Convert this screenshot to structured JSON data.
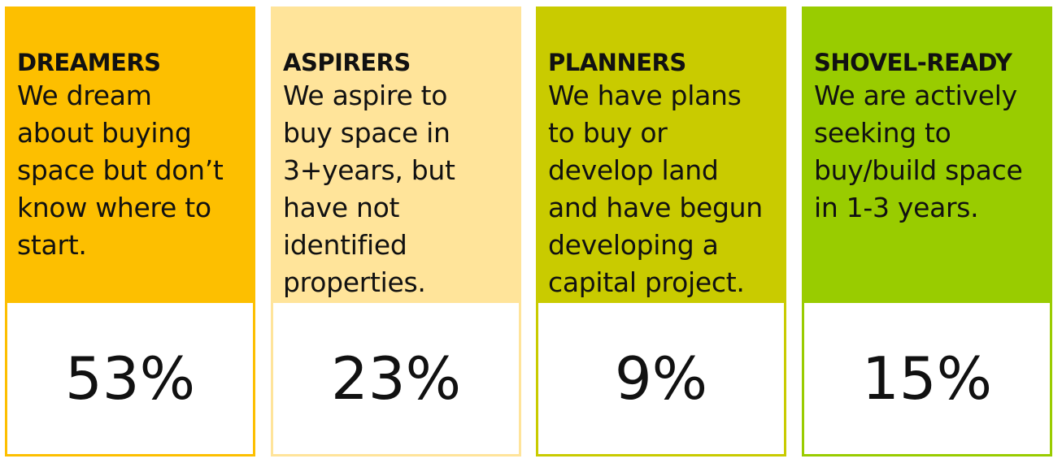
{
  "cards": [
    {
      "title": "DREAMERS",
      "lines": [
        "We dream",
        "about buying",
        "space but don’t",
        "know where to",
        "start."
      ],
      "value": "53%"
    },
    {
      "title": "ASPIRERS",
      "lines": [
        "We aspire to",
        "buy space in",
        "3+years, but",
        "have not",
        "identified",
        "properties."
      ],
      "value": "23%"
    },
    {
      "title": "PLANNERS",
      "lines": [
        "We have plans",
        "to buy or",
        "develop land",
        "and have begun",
        "developing a",
        "capital project."
      ],
      "value": "9%"
    },
    {
      "title": "SHOVEL-READY",
      "lines": [
        "We are actively",
        "seeking to",
        "buy/build space",
        "in 1-3 years."
      ],
      "value": "15%"
    }
  ]
}
